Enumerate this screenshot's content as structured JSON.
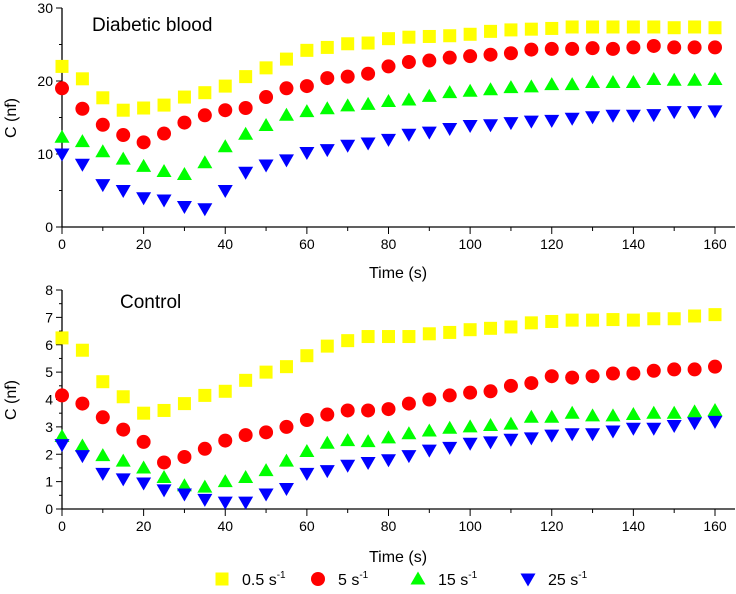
{
  "legend": {
    "placement": "bottom",
    "items": [
      {
        "label": "0.5 s",
        "sup": "-1",
        "marker": "square",
        "color": "#ffff00"
      },
      {
        "label": "5 s",
        "sup": "-1",
        "marker": "circle",
        "color": "#ff0000"
      },
      {
        "label": "15 s",
        "sup": "-1",
        "marker": "triangle-up",
        "color": "#00ff00"
      },
      {
        "label": "25 s",
        "sup": "-1",
        "marker": "triangle-down",
        "color": "#0000ff"
      }
    ]
  },
  "chart_data": [
    {
      "type": "scatter",
      "title": "Diabetic blood",
      "xlabel": "Time (s)",
      "ylabel": "C (nf)",
      "xlim": [
        0,
        160
      ],
      "ylim": [
        0,
        30
      ],
      "xticks": [
        "0",
        "20",
        "40",
        "60",
        "80",
        "100",
        "120",
        "140",
        "160"
      ],
      "yticks": [
        "0",
        "10",
        "20",
        "30"
      ],
      "grid": false,
      "x": [
        0,
        5,
        10,
        15,
        20,
        25,
        30,
        35,
        40,
        45,
        50,
        55,
        60,
        65,
        70,
        75,
        80,
        85,
        90,
        95,
        100,
        105,
        110,
        115,
        120,
        125,
        130,
        135,
        140,
        145,
        150,
        155,
        160
      ],
      "series": [
        {
          "name": "0.5 s-1",
          "values": [
            22,
            20.3,
            17.7,
            16,
            16.3,
            16.7,
            17.8,
            18.4,
            19.3,
            20.6,
            21.8,
            23,
            24.2,
            24.6,
            25.1,
            25.2,
            25.8,
            26,
            26.1,
            26.2,
            26.4,
            26.8,
            27,
            27.1,
            27.2,
            27.4,
            27.4,
            27.4,
            27.4,
            27.4,
            27.3,
            27.4,
            27.3
          ]
        },
        {
          "name": "5 s-1",
          "values": [
            19,
            16.2,
            14,
            12.6,
            11.6,
            12.8,
            14.3,
            15.3,
            16,
            16.3,
            17.8,
            19,
            19.3,
            20.4,
            20.6,
            21,
            22,
            22.6,
            22.8,
            23.2,
            23.4,
            23.6,
            23.8,
            24.3,
            24.4,
            24.4,
            24.5,
            24.4,
            24.6,
            24.8,
            24.6,
            24.6,
            24.6
          ]
        },
        {
          "name": "15 s-1",
          "values": [
            12.3,
            11.7,
            10.3,
            9.3,
            8.3,
            7.6,
            7.2,
            8.8,
            11,
            12.7,
            13.9,
            15.3,
            15.8,
            16.2,
            16.6,
            16.8,
            17.2,
            17.4,
            17.9,
            18.4,
            18.6,
            18.8,
            19.1,
            19.2,
            19.5,
            19.5,
            19.8,
            19.8,
            19.8,
            20.2,
            20.1,
            20.1,
            20.2
          ]
        },
        {
          "name": "25 s-1",
          "values": [
            10,
            8.6,
            5.8,
            5,
            4,
            3.7,
            2.8,
            2.5,
            5,
            7.5,
            8.5,
            9.2,
            10.2,
            10.6,
            11.2,
            11.5,
            12,
            12.7,
            13,
            13.5,
            13.9,
            14,
            14.3,
            14.5,
            14.6,
            14.9,
            15.1,
            15.3,
            15.3,
            15.4,
            15.8,
            15.8,
            15.9
          ]
        }
      ]
    },
    {
      "type": "scatter",
      "title": "Control",
      "xlabel": "Time (s)",
      "ylabel": "C (nf)",
      "xlim": [
        0,
        160
      ],
      "ylim": [
        0,
        8
      ],
      "xticks": [
        "0",
        "20",
        "40",
        "60",
        "80",
        "100",
        "120",
        "140",
        "160"
      ],
      "yticks": [
        "0",
        "1",
        "2",
        "3",
        "4",
        "5",
        "6",
        "7",
        "8"
      ],
      "grid": false,
      "x": [
        0,
        5,
        10,
        15,
        20,
        25,
        30,
        35,
        40,
        45,
        50,
        55,
        60,
        65,
        70,
        75,
        80,
        85,
        90,
        95,
        100,
        105,
        110,
        115,
        120,
        125,
        130,
        135,
        140,
        145,
        150,
        155,
        160
      ],
      "series": [
        {
          "name": "0.5 s-1",
          "values": [
            6.25,
            5.8,
            4.65,
            4.1,
            3.5,
            3.6,
            3.85,
            4.15,
            4.3,
            4.7,
            5.0,
            5.2,
            5.6,
            5.95,
            6.15,
            6.3,
            6.3,
            6.3,
            6.4,
            6.45,
            6.55,
            6.6,
            6.65,
            6.8,
            6.85,
            6.9,
            6.9,
            6.92,
            6.9,
            6.95,
            6.95,
            7.05,
            7.1
          ]
        },
        {
          "name": "5 s-1",
          "values": [
            4.15,
            3.85,
            3.35,
            2.9,
            2.45,
            1.7,
            1.9,
            2.2,
            2.5,
            2.7,
            2.8,
            3.0,
            3.25,
            3.45,
            3.6,
            3.6,
            3.65,
            3.85,
            4.0,
            4.15,
            4.25,
            4.3,
            4.5,
            4.6,
            4.85,
            4.8,
            4.85,
            4.95,
            4.95,
            5.05,
            5.1,
            5.1,
            5.2
          ]
        },
        {
          "name": "15 s-1",
          "values": [
            2.65,
            2.3,
            1.95,
            1.75,
            1.5,
            1.15,
            0.85,
            0.8,
            1.0,
            1.15,
            1.4,
            1.75,
            2.1,
            2.4,
            2.5,
            2.46,
            2.6,
            2.75,
            2.85,
            2.95,
            3.0,
            3.05,
            3.1,
            3.35,
            3.35,
            3.5,
            3.4,
            3.4,
            3.45,
            3.5,
            3.5,
            3.55,
            3.6
          ]
        },
        {
          "name": "25 s-1",
          "values": [
            2.35,
            1.95,
            1.3,
            1.1,
            0.95,
            0.7,
            0.55,
            0.35,
            0.25,
            0.25,
            0.55,
            0.75,
            1.3,
            1.4,
            1.6,
            1.7,
            1.8,
            1.95,
            2.15,
            2.25,
            2.4,
            2.45,
            2.55,
            2.6,
            2.7,
            2.75,
            2.75,
            2.85,
            2.95,
            2.95,
            3.05,
            3.15,
            3.2
          ]
        }
      ]
    }
  ]
}
